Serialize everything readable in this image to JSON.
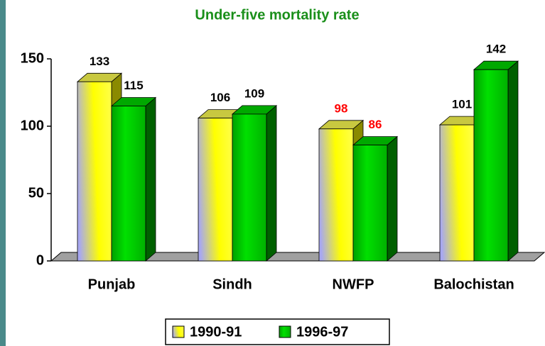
{
  "chart_data": {
    "type": "bar3d",
    "title": "Under-five mortality rate",
    "categories": [
      "Punjab",
      "Sindh",
      "NWFP",
      "Balochistan"
    ],
    "series": [
      {
        "name": "1990-91",
        "color": "#ffff00",
        "values": [
          133,
          106,
          98,
          101
        ],
        "label_colors": [
          "#000000",
          "#000000",
          "#ff0000",
          "#000000"
        ]
      },
      {
        "name": "1996-97",
        "color": "#00cc00",
        "values": [
          115,
          109,
          86,
          142
        ],
        "label_colors": [
          "#000000",
          "#000000",
          "#ff0000",
          "#000000"
        ]
      }
    ],
    "ylim": [
      0,
      150
    ],
    "yticks": [
      0,
      50,
      100,
      150
    ],
    "title_color": "#1a8f1a",
    "legend": "bottom"
  }
}
